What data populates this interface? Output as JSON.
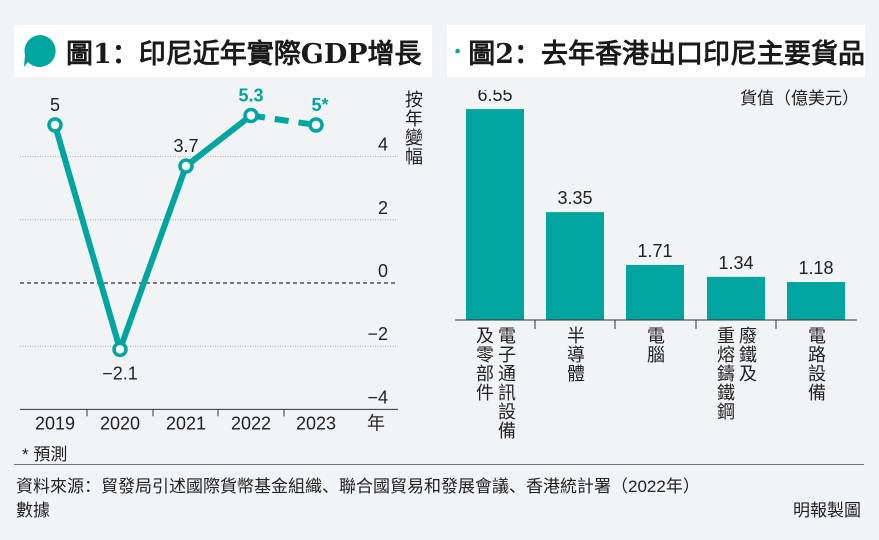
{
  "colors": {
    "accent": "#00a5a0",
    "text": "#222222",
    "background": "#f2f3f5"
  },
  "chart1": {
    "title": "圖1：印尼近年實際GDP增長",
    "title_icon": "speech-bubble-icon",
    "y_axis_label": "按年變幅",
    "x_axis_unit": "年",
    "note": "* 預測",
    "chart_data": {
      "type": "line",
      "title": "圖1：印尼近年實際GDP增長",
      "xlabel": "年",
      "ylabel": "按年變幅",
      "categories": [
        "2019",
        "2020",
        "2021",
        "2022",
        "2023"
      ],
      "series": [
        {
          "name": "實際GDP增長",
          "values": [
            5,
            -2.1,
            3.7,
            5.3,
            5
          ],
          "forecast": [
            false,
            false,
            false,
            false,
            true
          ]
        }
      ],
      "data_labels": [
        "5",
        "−2.1",
        "3.7",
        "5.3",
        "5*"
      ],
      "yticks": [
        4,
        2,
        0,
        -2,
        -4
      ],
      "ytick_labels": [
        "4",
        "2",
        "0",
        "−2",
        "−4"
      ],
      "ylim": [
        -4,
        5.8
      ],
      "grid": true,
      "zero_line": "dashed",
      "y_axis_position": "right"
    }
  },
  "chart2": {
    "title": "圖2：去年香港出口印尼主要貨品",
    "title_icon": "speech-bubble-icon",
    "unit_label": "貨值（億美元）",
    "chart_data": {
      "type": "bar",
      "title": "圖2：去年香港出口印尼主要貨品",
      "ylabel": "貨值（億美元）",
      "categories": [
        "電子通訊設備及零部件",
        "半導體",
        "電腦",
        "廢鐵及重熔鑄鐵鋼",
        "電路設備"
      ],
      "category_lines": [
        [
          "電子通訊設備",
          "及零部件"
        ],
        [
          "半導體"
        ],
        [
          "電腦"
        ],
        [
          "廢鐵及",
          "重熔鑄鐵鋼"
        ],
        [
          "電路設備"
        ]
      ],
      "values": [
        6.55,
        3.35,
        1.71,
        1.34,
        1.18
      ],
      "data_labels": [
        "6.55",
        "3.35",
        "1.71",
        "1.34",
        "1.18"
      ],
      "ylim": [
        0,
        7
      ],
      "grid": false
    }
  },
  "footer": {
    "source_line1": "資料來源：貿發局引述國際貨幣基金組織、聯合國貿易和發展會議、香港統計署（2022年）",
    "source_line2": "數據",
    "credit": "明報製圖"
  }
}
